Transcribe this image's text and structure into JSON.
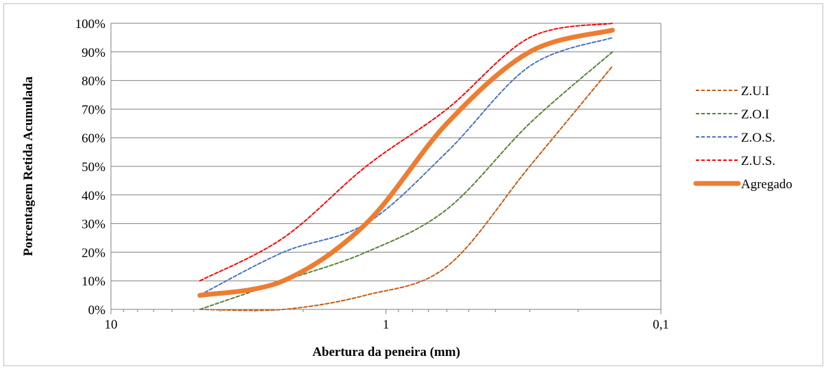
{
  "chart_data": {
    "type": "line",
    "xlabel": "Abertura da peneira (mm)",
    "ylabel": "Porcentagem Retida Acumulada",
    "x_scale": "log",
    "x_reversed": true,
    "xlim": [
      10,
      0.1
    ],
    "ylim": [
      0,
      100
    ],
    "x_ticks": [
      {
        "value": 10,
        "label": "10"
      },
      {
        "value": 1,
        "label": "1"
      },
      {
        "value": 0.1,
        "label": "0,1"
      }
    ],
    "y_ticks": [
      {
        "value": 0,
        "label": "0%"
      },
      {
        "value": 10,
        "label": "10%"
      },
      {
        "value": 20,
        "label": "20%"
      },
      {
        "value": 30,
        "label": "30%"
      },
      {
        "value": 40,
        "label": "40%"
      },
      {
        "value": 50,
        "label": "50%"
      },
      {
        "value": 60,
        "label": "60%"
      },
      {
        "value": 70,
        "label": "70%"
      },
      {
        "value": 80,
        "label": "80%"
      },
      {
        "value": 90,
        "label": "90%"
      },
      {
        "value": 100,
        "label": "100%"
      }
    ],
    "grid": true,
    "legend_position": "right",
    "x": [
      4.75,
      2.36,
      1.18,
      0.6,
      0.3,
      0.15
    ],
    "series": [
      {
        "name": "Z.U.I",
        "values": [
          0,
          0,
          5,
          15,
          50,
          85
        ],
        "color": "#c55a11",
        "style": "dashed"
      },
      {
        "name": "Z.O.I",
        "values": [
          0,
          10,
          20,
          35,
          65,
          90
        ],
        "color": "#548235",
        "style": "dashed"
      },
      {
        "name": "Z.O.S.",
        "values": [
          5,
          20,
          30,
          55,
          85,
          95
        ],
        "color": "#4472c4",
        "style": "dashed"
      },
      {
        "name": "Z.U.S.",
        "values": [
          10,
          25,
          50,
          70,
          95,
          100
        ],
        "color": "#ff0000",
        "style": "dashed"
      },
      {
        "name": "Agregado",
        "values": [
          4.9,
          10,
          30,
          65,
          90,
          97.6
        ],
        "color": "#ed7d31",
        "style": "solid"
      }
    ]
  }
}
